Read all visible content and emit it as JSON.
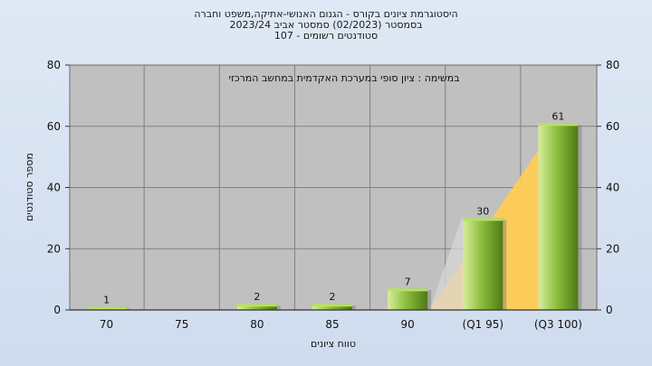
{
  "titles": {
    "line1": "היסטוגרמת ציונים בקורס - הגנום האנושי-אתיקה,משפט וחברה",
    "line2": "בסמסטר   (02/2023)  סמסטר אביב 2023/24",
    "line3": "סטודנטים רשומים - 107"
  },
  "colors": {
    "bar_light": "#d8ee9a",
    "bar_mid": "#8fbf3f",
    "bar_dark": "#4e7a16",
    "quartile_fill": "#ffcc55",
    "plot_bg": "#c0c0c0",
    "grid": "#808080"
  },
  "chart_data": {
    "type": "bar",
    "categories": [
      "70",
      "75",
      "80",
      "85",
      "90",
      "(Q1 95)",
      "(Q3 100)"
    ],
    "values": [
      1,
      0,
      2,
      2,
      7,
      30,
      61
    ],
    "data_labels": [
      "1",
      "",
      "2",
      "2",
      "7",
      "30",
      "61"
    ],
    "ylim": [
      0,
      80
    ],
    "yticks": [
      "0",
      "20",
      "40",
      "60",
      "80"
    ],
    "xlabel": "טווח ציונים",
    "ylabel": "מספר סטודנטים",
    "annotation": "במשימה : ציון סופי במערכת האקדמית במחשב המרכזי",
    "quartile_band": {
      "from_category_index": 4,
      "to_category_index": 6
    },
    "grid": true,
    "y_axis_both_sides": true
  }
}
